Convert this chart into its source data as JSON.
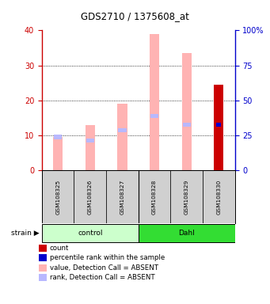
{
  "title": "GDS2710 / 1375608_at",
  "samples": [
    "GSM108325",
    "GSM108326",
    "GSM108327",
    "GSM108328",
    "GSM108329",
    "GSM108330"
  ],
  "value_absent": [
    9.5,
    13.0,
    19.0,
    39.0,
    33.5,
    24.5
  ],
  "rank_absent": [
    9.5,
    8.5,
    11.5,
    15.5,
    13.0,
    13.0
  ],
  "count_present": [
    0,
    0,
    0,
    0,
    0,
    24.5
  ],
  "percentile_rank": [
    0,
    0,
    0,
    0,
    0,
    13.0
  ],
  "ylim_left": [
    0,
    40
  ],
  "ylim_right": [
    0,
    100
  ],
  "yticks_left": [
    0,
    10,
    20,
    30,
    40
  ],
  "yticks_right": [
    0,
    25,
    50,
    75,
    100
  ],
  "ytick_right_labels": [
    "0",
    "25",
    "50",
    "75",
    "100%"
  ],
  "color_value_absent": "#ffb3b3",
  "color_rank_absent": "#b8b8ff",
  "color_count": "#cc0000",
  "color_rank_present": "#0000cc",
  "left_axis_color": "#cc0000",
  "right_axis_color": "#0000cc",
  "bar_width": 0.3,
  "rank_bar_width": 0.25,
  "legend_items": [
    {
      "color": "#cc0000",
      "label": "count"
    },
    {
      "color": "#0000cc",
      "label": "percentile rank within the sample"
    },
    {
      "color": "#ffb3b3",
      "label": "value, Detection Call = ABSENT"
    },
    {
      "color": "#b8b8ff",
      "label": "rank, Detection Call = ABSENT"
    }
  ],
  "control_color": "#ccffcc",
  "dahl_color": "#33dd33"
}
